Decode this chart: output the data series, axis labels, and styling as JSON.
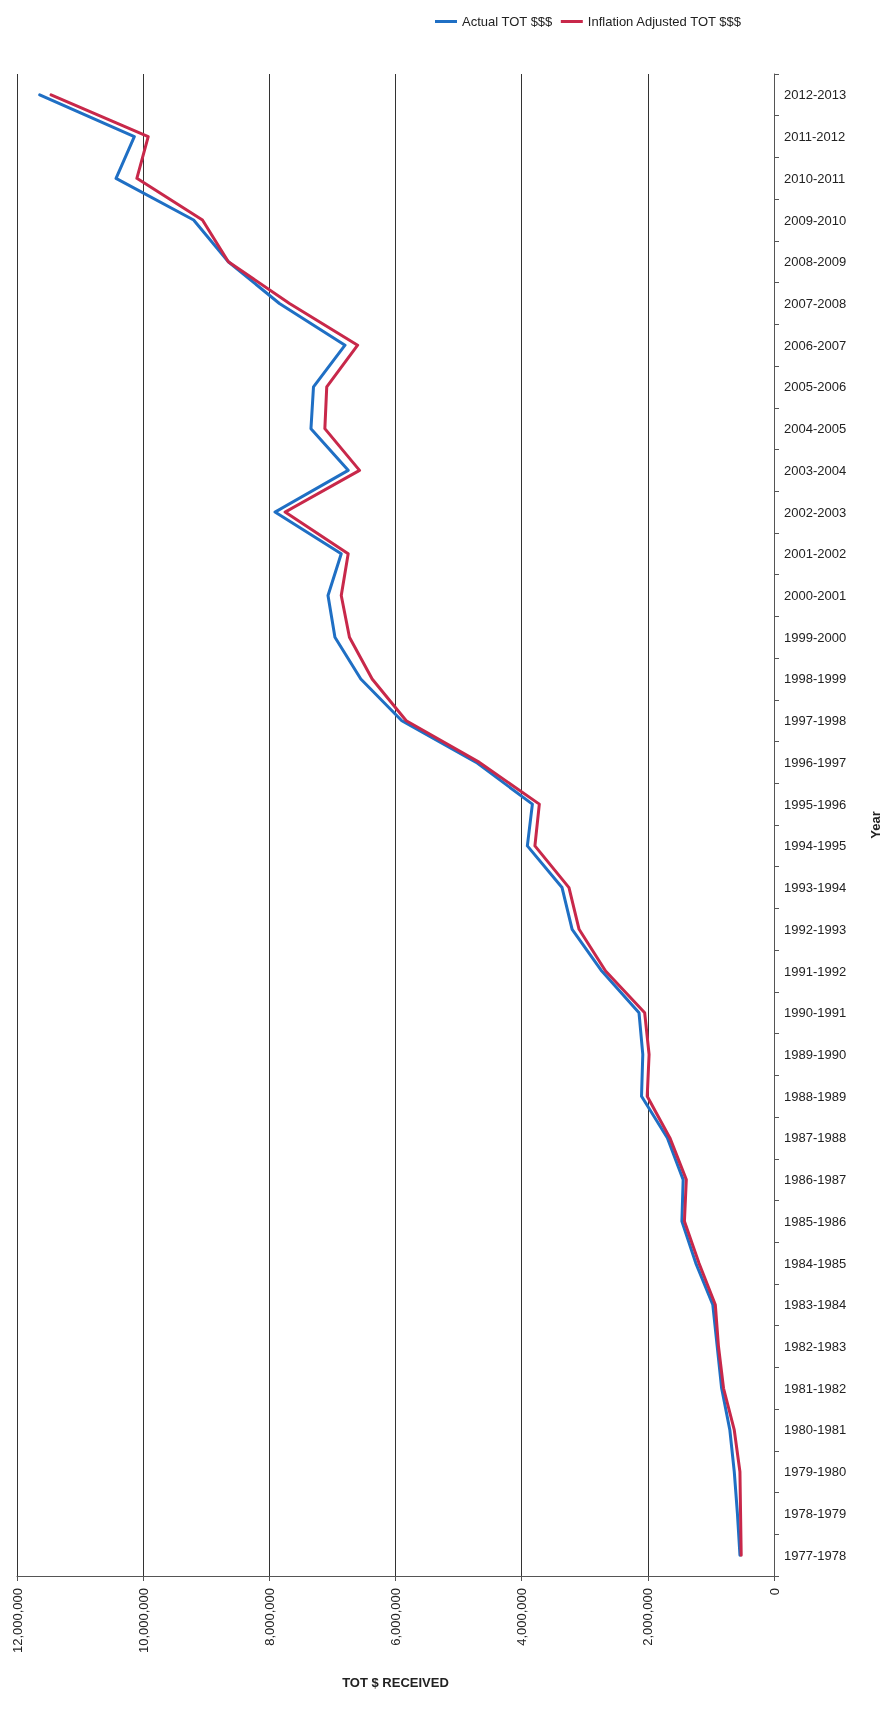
{
  "chart_data": {
    "type": "line",
    "orientation": "horizontal",
    "xlabel": "TOT $ RECEIVED",
    "ylabel": "Year",
    "categories": [
      "2012-2013",
      "2011-2012",
      "2010-2011",
      "2009-2010",
      "2008-2009",
      "2007-2008",
      "2006-2007",
      "2005-2006",
      "2004-2005",
      "2003-2004",
      "2002-2003",
      "2001-2002",
      "2000-2001",
      "1999-2000",
      "1998-1999",
      "1997-1998",
      "1996-1997",
      "1995-1996",
      "1994-1995",
      "1993-1994",
      "1992-1993",
      "1991-1992",
      "1990-1991",
      "1989-1990",
      "1988-1989",
      "1987-1988",
      "1986-1987",
      "1985-1986",
      "1984-1985",
      "1983-1984",
      "1982-1983",
      "1981-1982",
      "1980-1981",
      "1979-1980",
      "1978-1979",
      "1977-1978"
    ],
    "series": [
      {
        "name": "Actual TOT $$$",
        "color": "#1f6fc4",
        "values": [
          11640000,
          10140000,
          10430000,
          9200000,
          8650000,
          7840000,
          6800000,
          7300000,
          7340000,
          6750000,
          7910000,
          6860000,
          7070000,
          6960000,
          6550000,
          5900000,
          4720000,
          3830000,
          3910000,
          3360000,
          3200000,
          2730000,
          2140000,
          2080000,
          2100000,
          1690000,
          1440000,
          1460000,
          1240000,
          970000,
          900000,
          830000,
          700000,
          630000,
          580000,
          540000
        ]
      },
      {
        "name": "Inflation Adjusted TOT $$$",
        "color": "#c8284a",
        "values": [
          11460000,
          9920000,
          10100000,
          9060000,
          8650000,
          7680000,
          6600000,
          7090000,
          7120000,
          6570000,
          7750000,
          6750000,
          6860000,
          6730000,
          6370000,
          5830000,
          4670000,
          3720000,
          3790000,
          3250000,
          3090000,
          2670000,
          2050000,
          1980000,
          2010000,
          1650000,
          1390000,
          1420000,
          1190000,
          930000,
          880000,
          800000,
          630000,
          540000,
          530000,
          520000
        ]
      }
    ],
    "xlim": [
      12000000,
      0
    ],
    "xticks": [
      0,
      {
        "value": 2000000,
        "label": "2,000,000"
      },
      {
        "value": 4000000,
        "label": "4,000,000"
      },
      {
        "value": 6000000,
        "label": "6,000,000"
      },
      {
        "value": 8000000,
        "label": "8,000,000"
      },
      {
        "value": 10000000,
        "label": "10,000,000"
      },
      {
        "value": 12000000,
        "label": "12,000,000"
      }
    ],
    "grid": "x",
    "legend": "top",
    "marker": "none",
    "line_style": "solid"
  }
}
